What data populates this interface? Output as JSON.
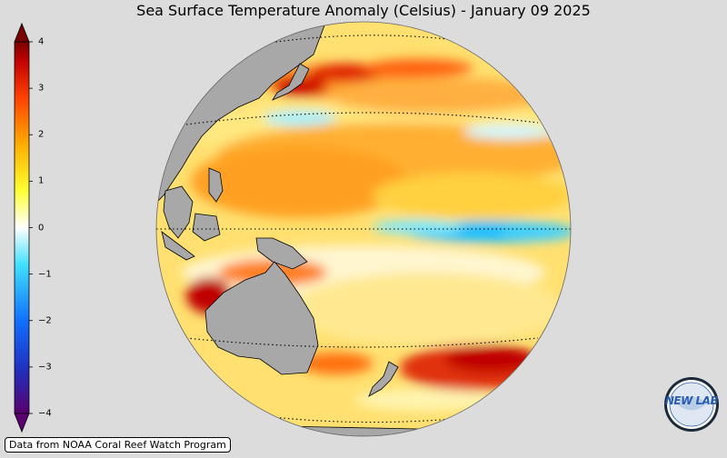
{
  "title": "Sea Surface Temperature Anomaly (Celsius) - January 09 2025",
  "colorbar": {
    "min": -4,
    "max": 4,
    "ticks": [
      "4",
      "3",
      "2",
      "1",
      "0",
      "−1",
      "−2",
      "−3",
      "−4"
    ],
    "colors": [
      "#5a006e",
      "#2030c0",
      "#1070ff",
      "#40c8ff",
      "#ffffff",
      "#ffff30",
      "#ffb000",
      "#ff5000",
      "#c80000",
      "#7a0000"
    ]
  },
  "credit": "Data from NOAA Coral Reef Watch Program",
  "logo": {
    "text": "NEW LAB",
    "icon": "new-lab-logo-icon"
  }
}
